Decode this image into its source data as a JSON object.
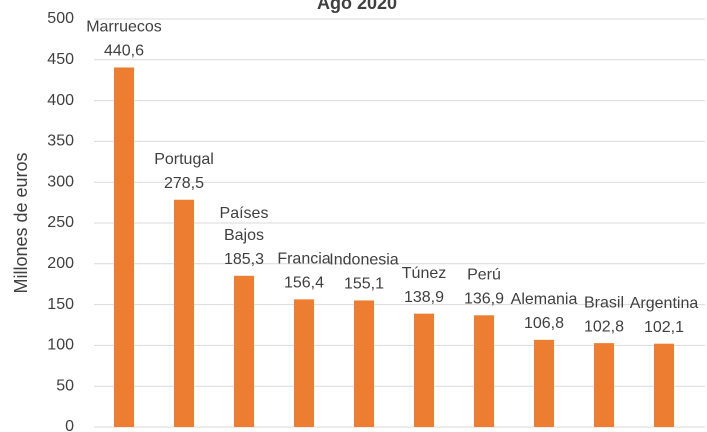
{
  "chart_data": {
    "type": "bar",
    "title": "Ago 2020",
    "y_label": "Millones de euros",
    "categories": [
      "Marruecos",
      "Portugal",
      "Países Bajos",
      "Francia",
      "Indonesia",
      "Túnez",
      "Perú",
      "Alemania",
      "Brasil",
      "Argentina"
    ],
    "values": [
      440.6,
      278.5,
      185.3,
      156.4,
      155.1,
      138.9,
      136.9,
      106.8,
      102.8,
      102.1
    ],
    "value_labels": [
      "440,6",
      "278,5",
      "185,3",
      "156,4",
      "155,1",
      "138,9",
      "136,9",
      "106,8",
      "102,8",
      "102,1"
    ],
    "color": "#ed7d31",
    "ylim": [
      0,
      500
    ],
    "yticks": [
      0,
      50,
      100,
      150,
      200,
      250,
      300,
      350,
      400,
      450,
      500
    ],
    "grid": true
  }
}
